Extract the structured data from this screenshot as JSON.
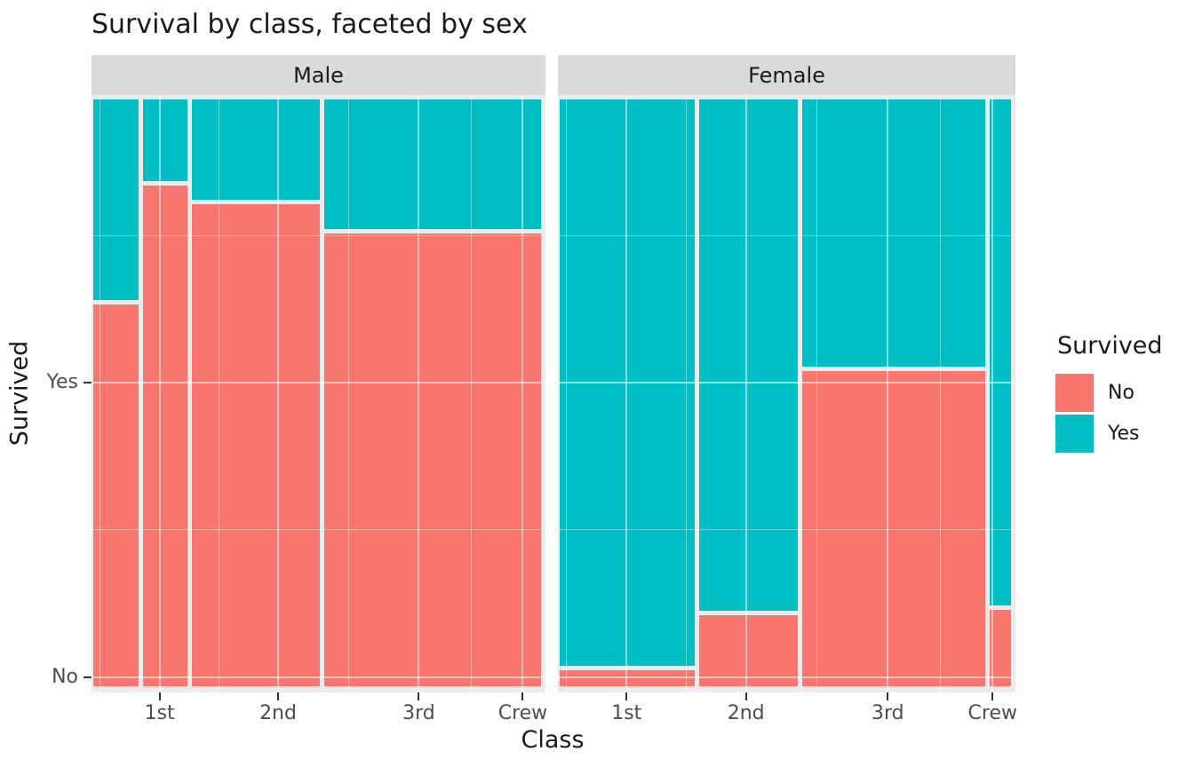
{
  "title": "Survival by class, faceted by sex",
  "chart_data": {
    "type": "mosaic",
    "title": "Survival by class, faceted by sex",
    "xlabel": "Class",
    "ylabel": "Survived",
    "categories": [
      "1st",
      "2nd",
      "3rd",
      "Crew"
    ],
    "facets": [
      {
        "label": "Male",
        "columns": [
          {
            "category": "1st",
            "no": 118,
            "yes": 62
          },
          {
            "category": "2nd",
            "no": 154,
            "yes": 25
          },
          {
            "category": "3rd",
            "no": 422,
            "yes": 88
          },
          {
            "category": "Crew",
            "no": 670,
            "yes": 192
          }
        ]
      },
      {
        "label": "Female",
        "columns": [
          {
            "category": "1st",
            "no": 4,
            "yes": 141
          },
          {
            "category": "2nd",
            "no": 13,
            "yes": 93
          },
          {
            "category": "3rd",
            "no": 106,
            "yes": 90
          },
          {
            "category": "Crew",
            "no": 3,
            "yes": 20
          }
        ]
      }
    ],
    "legend": {
      "title": "Survived",
      "position": "right",
      "entries": [
        {
          "label": "No",
          "color": "#F8766D"
        },
        {
          "label": "Yes",
          "color": "#00BFC4"
        }
      ]
    },
    "x_ticks": {
      "labels": [
        "1st",
        "2nd",
        "3rd",
        "Crew"
      ],
      "fracs": [
        0.15,
        0.411,
        0.721,
        0.95
      ]
    },
    "y_ticks": {
      "labels": [
        "Yes",
        "No"
      ],
      "fracs_from_top": [
        0.482,
        0.975
      ]
    },
    "grid": {
      "v_minor_fracs": [
        0.018,
        0.281,
        0.566,
        0.836
      ],
      "h_minor_fracs": [
        0.235,
        0.728
      ],
      "grid_on": true
    },
    "colors": {
      "no": "#F8766D",
      "yes": "#00BFC4",
      "panel_bg": "#EBEBEB",
      "strip_bg": "#DADADA",
      "grid": "#FFFFFF",
      "tick": "#333333",
      "tick_label": "#4D4D4D",
      "text": "#1A1A1A"
    }
  }
}
